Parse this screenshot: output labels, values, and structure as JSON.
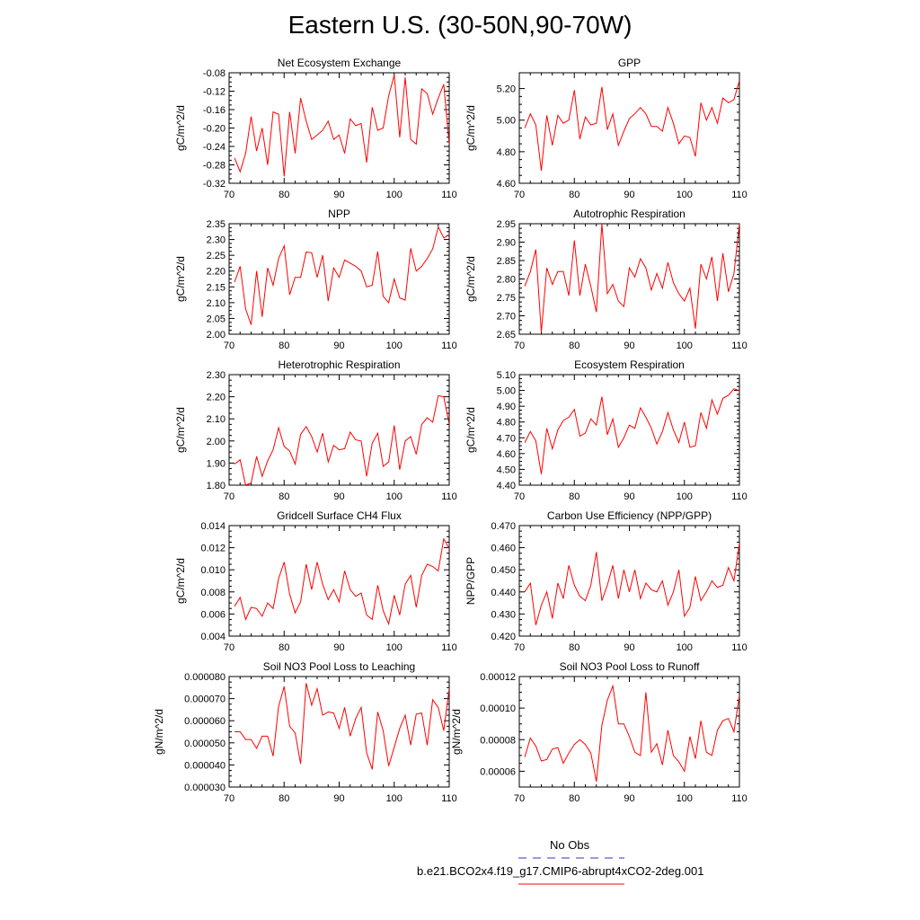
{
  "title": "Eastern U.S. (30-50N,90-70W)",
  "colors": {
    "series": "#ff0000",
    "obs": "#3333cc"
  },
  "legend": {
    "obs_label": "No Obs",
    "case_label": "b.e21.BCO2x4.f19_g17.CMIP6-abrupt4xCO2-2deg.001"
  },
  "chart_data": [
    {
      "type": "line",
      "title": "Net Ecosystem Exchange",
      "ylabel": "gC/m^2/d",
      "xlabel": "",
      "xlim": [
        70,
        110
      ],
      "ylim": [
        -0.32,
        -0.08
      ],
      "xticks": [
        70,
        80,
        90,
        100,
        110
      ],
      "yticks": [
        -0.32,
        -0.28,
        -0.24,
        -0.2,
        -0.16,
        -0.12,
        -0.08
      ],
      "ytick_labels": [
        "-0.32",
        "-0.28",
        "-0.24",
        "-0.20",
        "-0.16",
        "-0.12",
        "-0.08"
      ],
      "x_start": 71,
      "values": [
        -0.265,
        -0.295,
        -0.255,
        -0.175,
        -0.25,
        -0.2,
        -0.28,
        -0.165,
        -0.17,
        -0.305,
        -0.165,
        -0.255,
        -0.135,
        -0.185,
        -0.225,
        -0.215,
        -0.205,
        -0.185,
        -0.225,
        -0.215,
        -0.255,
        -0.18,
        -0.195,
        -0.19,
        -0.275,
        -0.155,
        -0.205,
        -0.2,
        -0.13,
        -0.085,
        -0.22,
        -0.09,
        -0.225,
        -0.235,
        -0.115,
        -0.125,
        -0.17,
        -0.135,
        -0.105,
        -0.235
      ]
    },
    {
      "type": "line",
      "title": "GPP",
      "ylabel": "gC/m^2/d",
      "xlabel": "",
      "xlim": [
        70,
        110
      ],
      "ylim": [
        4.6,
        5.3
      ],
      "xticks": [
        70,
        80,
        90,
        100,
        110
      ],
      "yticks": [
        4.6,
        4.8,
        5.0,
        5.2
      ],
      "ytick_labels": [
        "4.60",
        "4.80",
        "5.00",
        "5.20"
      ],
      "x_start": 71,
      "values": [
        4.95,
        5.04,
        4.97,
        4.68,
        5.03,
        4.84,
        5.03,
        4.98,
        5.0,
        5.19,
        4.88,
        5.02,
        4.97,
        4.98,
        5.21,
        4.94,
        5.04,
        4.84,
        4.93,
        5.01,
        5.04,
        5.08,
        5.04,
        4.96,
        4.96,
        4.93,
        5.08,
        4.98,
        4.85,
        4.9,
        4.89,
        4.77,
        5.11,
        5.0,
        5.08,
        4.98,
        5.14,
        5.11,
        5.13,
        5.25
      ]
    },
    {
      "type": "line",
      "title": "NPP",
      "ylabel": "gC/m^2/d",
      "xlabel": "",
      "xlim": [
        70,
        110
      ],
      "ylim": [
        2.0,
        2.35
      ],
      "xticks": [
        70,
        80,
        90,
        100,
        110
      ],
      "yticks": [
        2.0,
        2.05,
        2.1,
        2.15,
        2.2,
        2.25,
        2.3,
        2.35
      ],
      "ytick_labels": [
        "2.00",
        "2.05",
        "2.10",
        "2.15",
        "2.20",
        "2.25",
        "2.30",
        "2.35"
      ],
      "x_start": 71,
      "values": [
        2.165,
        2.215,
        2.08,
        2.03,
        2.2,
        2.055,
        2.21,
        2.155,
        2.24,
        2.28,
        2.125,
        2.18,
        2.18,
        2.26,
        2.258,
        2.18,
        2.25,
        2.105,
        2.21,
        2.18,
        2.235,
        2.225,
        2.215,
        2.2,
        2.15,
        2.155,
        2.262,
        2.12,
        2.1,
        2.175,
        2.115,
        2.108,
        2.272,
        2.2,
        2.215,
        2.24,
        2.27,
        2.34,
        2.305,
        2.315
      ]
    },
    {
      "type": "line",
      "title": "Autotrophic Respiration",
      "ylabel": "gC/m^2/d",
      "xlabel": "",
      "xlim": [
        70,
        110
      ],
      "ylim": [
        2.65,
        2.95
      ],
      "xticks": [
        70,
        80,
        90,
        100,
        110
      ],
      "yticks": [
        2.65,
        2.7,
        2.75,
        2.8,
        2.85,
        2.9,
        2.95
      ],
      "ytick_labels": [
        "2.65",
        "2.70",
        "2.75",
        "2.80",
        "2.85",
        "2.90",
        "2.95"
      ],
      "x_start": 71,
      "values": [
        2.78,
        2.82,
        2.88,
        2.655,
        2.83,
        2.785,
        2.82,
        2.82,
        2.755,
        2.905,
        2.755,
        2.84,
        2.78,
        2.71,
        2.95,
        2.76,
        2.785,
        2.74,
        2.725,
        2.83,
        2.805,
        2.855,
        2.83,
        2.77,
        2.815,
        2.775,
        2.845,
        2.79,
        2.76,
        2.74,
        2.775,
        2.665,
        2.84,
        2.8,
        2.86,
        2.74,
        2.87,
        2.765,
        2.815,
        2.95
      ]
    },
    {
      "type": "line",
      "title": "Heterotrophic Respiration",
      "ylabel": "gC/m^2/d",
      "xlabel": "",
      "xlim": [
        70,
        110
      ],
      "ylim": [
        1.8,
        2.3
      ],
      "xticks": [
        70,
        80,
        90,
        100,
        110
      ],
      "yticks": [
        1.8,
        1.9,
        2.0,
        2.1,
        2.2,
        2.3
      ],
      "ytick_labels": [
        "1.80",
        "1.90",
        "2.00",
        "2.10",
        "2.20",
        "2.30"
      ],
      "x_start": 71,
      "values": [
        1.895,
        1.915,
        1.8,
        1.81,
        1.93,
        1.84,
        1.91,
        1.96,
        2.06,
        1.975,
        1.955,
        1.895,
        2.03,
        2.065,
        2.02,
        1.95,
        2.035,
        1.905,
        1.98,
        1.96,
        1.965,
        2.04,
        2.005,
        2.0,
        1.84,
        1.99,
        2.035,
        1.885,
        1.905,
        2.07,
        1.87,
        2.0,
        2.02,
        1.94,
        2.075,
        2.105,
        2.085,
        2.205,
        2.2,
        2.075
      ]
    },
    {
      "type": "line",
      "title": "Ecosystem Respiration",
      "ylabel": "gC/m^2/d",
      "xlabel": "",
      "xlim": [
        70,
        110
      ],
      "ylim": [
        4.4,
        5.1
      ],
      "xticks": [
        70,
        80,
        90,
        100,
        110
      ],
      "yticks": [
        4.4,
        4.5,
        4.6,
        4.7,
        4.8,
        4.9,
        5.0,
        5.1
      ],
      "ytick_labels": [
        "4.40",
        "4.50",
        "4.60",
        "4.70",
        "4.80",
        "4.90",
        "5.00",
        "5.10"
      ],
      "x_start": 71,
      "values": [
        4.67,
        4.74,
        4.68,
        4.47,
        4.76,
        4.63,
        4.75,
        4.81,
        4.83,
        4.88,
        4.71,
        4.73,
        4.82,
        4.78,
        4.96,
        4.72,
        4.82,
        4.64,
        4.7,
        4.78,
        4.76,
        4.89,
        4.83,
        4.76,
        4.66,
        4.74,
        4.86,
        4.75,
        4.67,
        4.8,
        4.64,
        4.65,
        4.86,
        4.76,
        4.94,
        4.85,
        4.95,
        4.97,
        5.01,
        5.0
      ]
    },
    {
      "type": "line",
      "title": "Gridcell Surface CH4 Flux",
      "ylabel": "gC/m^2/d",
      "xlabel": "",
      "xlim": [
        70,
        110
      ],
      "ylim": [
        0.004,
        0.014
      ],
      "xticks": [
        70,
        80,
        90,
        100,
        110
      ],
      "yticks": [
        0.004,
        0.006,
        0.008,
        0.01,
        0.012,
        0.014
      ],
      "ytick_labels": [
        "0.004",
        "0.006",
        "0.008",
        "0.010",
        "0.012",
        "0.014"
      ],
      "x_start": 71,
      "values": [
        0.0067,
        0.0075,
        0.0055,
        0.0066,
        0.0065,
        0.0058,
        0.007,
        0.0065,
        0.0092,
        0.0107,
        0.0078,
        0.0061,
        0.0071,
        0.0105,
        0.0082,
        0.0107,
        0.0087,
        0.0073,
        0.0082,
        0.0071,
        0.0099,
        0.0082,
        0.0076,
        0.0079,
        0.0059,
        0.0055,
        0.0086,
        0.0063,
        0.0051,
        0.0077,
        0.0059,
        0.0087,
        0.0095,
        0.0066,
        0.0095,
        0.0105,
        0.0103,
        0.0099,
        0.0128,
        0.0119
      ]
    },
    {
      "type": "line",
      "title": "Carbon Use Efficiency (NPP/GPP)",
      "ylabel": "NPP/GPP",
      "xlabel": "",
      "xlim": [
        70,
        110
      ],
      "ylim": [
        0.42,
        0.47
      ],
      "xticks": [
        70,
        80,
        90,
        100,
        110
      ],
      "yticks": [
        0.42,
        0.43,
        0.44,
        0.45,
        0.46,
        0.47
      ],
      "ytick_labels": [
        "0.420",
        "0.430",
        "0.440",
        "0.450",
        "0.460",
        "0.470"
      ],
      "x_start": 71,
      "values": [
        0.44,
        0.444,
        0.425,
        0.434,
        0.44,
        0.428,
        0.444,
        0.437,
        0.452,
        0.443,
        0.438,
        0.436,
        0.443,
        0.458,
        0.436,
        0.443,
        0.452,
        0.437,
        0.45,
        0.44,
        0.45,
        0.437,
        0.444,
        0.441,
        0.44,
        0.445,
        0.434,
        0.44,
        0.45,
        0.429,
        0.433,
        0.447,
        0.436,
        0.44,
        0.445,
        0.442,
        0.443,
        0.451,
        0.445,
        0.462
      ]
    },
    {
      "type": "line",
      "title": "Soil NO3 Pool Loss to Leaching",
      "ylabel": "gN/m^2/d",
      "xlabel": "",
      "xlim": [
        70,
        110
      ],
      "ylim": [
        3e-05,
        8e-05
      ],
      "xticks": [
        70,
        80,
        90,
        100,
        110
      ],
      "yticks": [
        3e-05,
        4e-05,
        5e-05,
        6e-05,
        7e-05,
        8e-05
      ],
      "ytick_labels": [
        "0.000030",
        "0.000040",
        "0.000050",
        "0.000060",
        "0.000070",
        "0.000080"
      ],
      "x_start": 71,
      "values": [
        5.5e-05,
        5.5e-05,
        5.15e-05,
        5.15e-05,
        4.75e-05,
        5.3e-05,
        5.3e-05,
        4.4e-05,
        6.65e-05,
        7.55e-05,
        5.75e-05,
        5.45e-05,
        4.05e-05,
        7.7e-05,
        6.7e-05,
        7.45e-05,
        6.25e-05,
        6.4e-05,
        6.35e-05,
        5.65e-05,
        6.6e-05,
        5.3e-05,
        6.1e-05,
        6.6e-05,
        4.55e-05,
        3.8e-05,
        6.4e-05,
        5.55e-05,
        3.95e-05,
        4.8e-05,
        5.65e-05,
        6.25e-05,
        4.9e-05,
        6.3e-05,
        6.35e-05,
        4.9e-05,
        6.95e-05,
        6.6e-05,
        5.55e-05,
        7.45e-05
      ]
    },
    {
      "type": "line",
      "title": "Soil NO3 Pool Loss to Runoff",
      "ylabel": "gN/m^2/d",
      "xlabel": "",
      "xlim": [
        70,
        110
      ],
      "ylim": [
        5e-05,
        0.00012
      ],
      "xticks": [
        70,
        80,
        90,
        100,
        110
      ],
      "yticks": [
        6e-05,
        8e-05,
        0.0001,
        0.00012
      ],
      "ytick_labels": [
        "0.00006",
        "0.00008",
        "0.00010",
        "0.00012"
      ],
      "x_start": 71,
      "values": [
        6.9e-05,
        8.1e-05,
        7.6e-05,
        6.65e-05,
        6.75e-05,
        7.4e-05,
        7.5e-05,
        6.5e-05,
        7.15e-05,
        7.7e-05,
        8e-05,
        7.7e-05,
        7.15e-05,
        5.35e-05,
        8.9e-05,
        0.000105,
        0.000114,
        9e-05,
        9e-05,
        8.2e-05,
        7.2e-05,
        7e-05,
        0.00011,
        7.2e-05,
        7.75e-05,
        6.4e-05,
        8.6e-05,
        7e-05,
        6.6e-05,
        6e-05,
        8.2e-05,
        6.8e-05,
        9.2e-05,
        7.2e-05,
        7e-05,
        8.6e-05,
        9.2e-05,
        9.35e-05,
        8.5e-05,
        0.000108
      ]
    }
  ]
}
